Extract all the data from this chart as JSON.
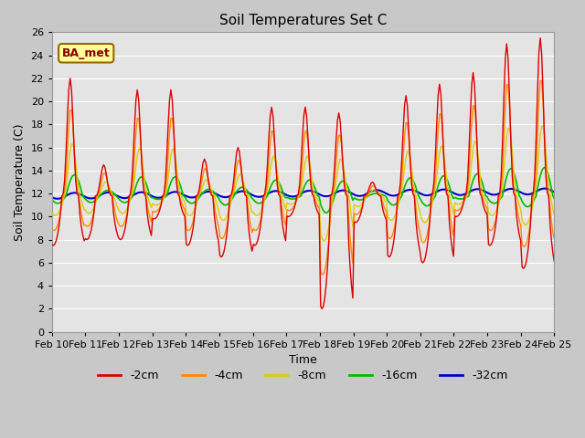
{
  "title": "Soil Temperatures Set C",
  "xlabel": "Time",
  "ylabel": "Soil Temperature (C)",
  "ylim": [
    0,
    26
  ],
  "yticks": [
    0,
    2,
    4,
    6,
    8,
    10,
    12,
    14,
    16,
    18,
    20,
    22,
    24,
    26
  ],
  "xtick_labels": [
    "Feb 10",
    "Feb 11",
    "Feb 12",
    "Feb 13",
    "Feb 14",
    "Feb 15",
    "Feb 16",
    "Feb 17",
    "Feb 18",
    "Feb 19",
    "Feb 20",
    "Feb 21",
    "Feb 22",
    "Feb 23",
    "Feb 24",
    "Feb 25"
  ],
  "colors": {
    "-2cm": "#dd0000",
    "-4cm": "#ff8800",
    "-8cm": "#ddcc00",
    "-16cm": "#00bb00",
    "-32cm": "#0000cc"
  },
  "bg_color": "#e8e8e8",
  "fig_bg": "#d0d0d0",
  "annotation_text": "BA_met",
  "annotation_bg": "#ffff99",
  "annotation_fg": "#880000",
  "annotation_border": "#996600"
}
